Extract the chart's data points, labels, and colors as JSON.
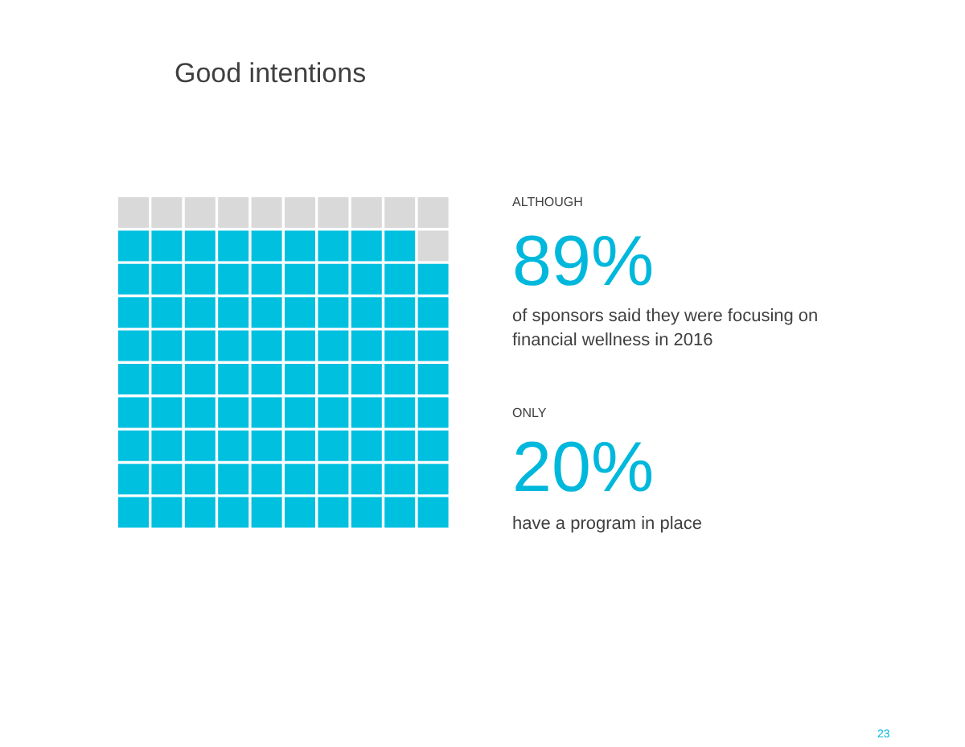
{
  "chart_data": {
    "type": "other",
    "title": "Good intentions",
    "values": [
      89
    ],
    "value_labels": [
      "89%"
    ],
    "color": "#00c0e0",
    "annotations": [
      "ALTHOUGH",
      "of sponsors said they were focusing on",
      "financial wellness in 2016",
      "ONLY",
      "20%",
      "have a program in place",
      "23"
    ]
  }
}
